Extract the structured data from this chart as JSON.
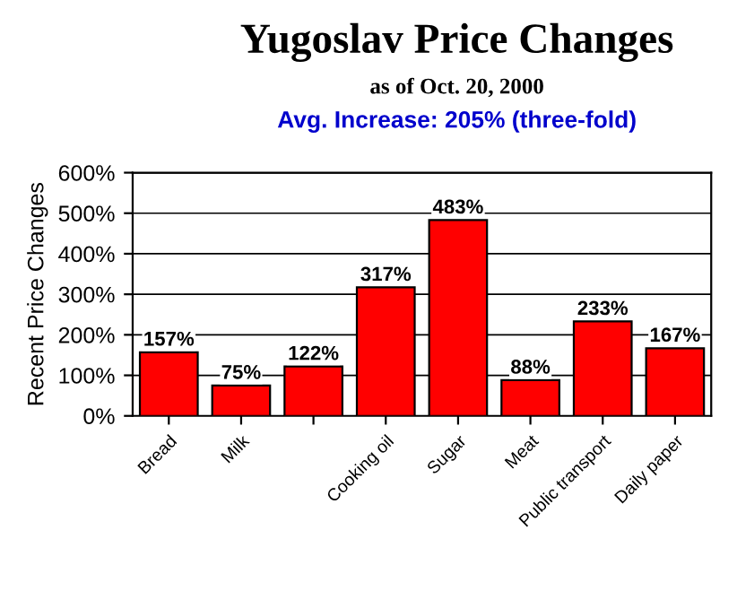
{
  "chart_data": {
    "type": "bar",
    "title": "Yugoslav Price Changes",
    "subtitle": "as of Oct. 20, 2000",
    "annotations": [
      "Avg. Increase: 205% (three-fold)"
    ],
    "ylabel": "Recent Price Changes",
    "categories": [
      "Bread",
      "Milk",
      null,
      "Cooking oil",
      "Sugar",
      "Meat",
      "Public transport",
      "Daily paper"
    ],
    "values": [
      157,
      75,
      122,
      317,
      483,
      88,
      233,
      167
    ],
    "color": "#ff0000",
    "data_labels": true,
    "value_labels": [
      "157%",
      "75%",
      "122%",
      "317%",
      "483%",
      "88%",
      "233%",
      "167%"
    ],
    "ylim": [
      0,
      600
    ],
    "yticks": [
      {
        "value": 0,
        "label": "0%"
      },
      {
        "value": 100,
        "label": "100%"
      },
      {
        "value": 200,
        "label": "200%"
      },
      {
        "value": 300,
        "label": "300%"
      },
      {
        "value": 400,
        "label": "400%"
      },
      {
        "value": 500,
        "label": "500%"
      },
      {
        "value": 600,
        "label": "600%"
      }
    ],
    "grid": "y"
  }
}
